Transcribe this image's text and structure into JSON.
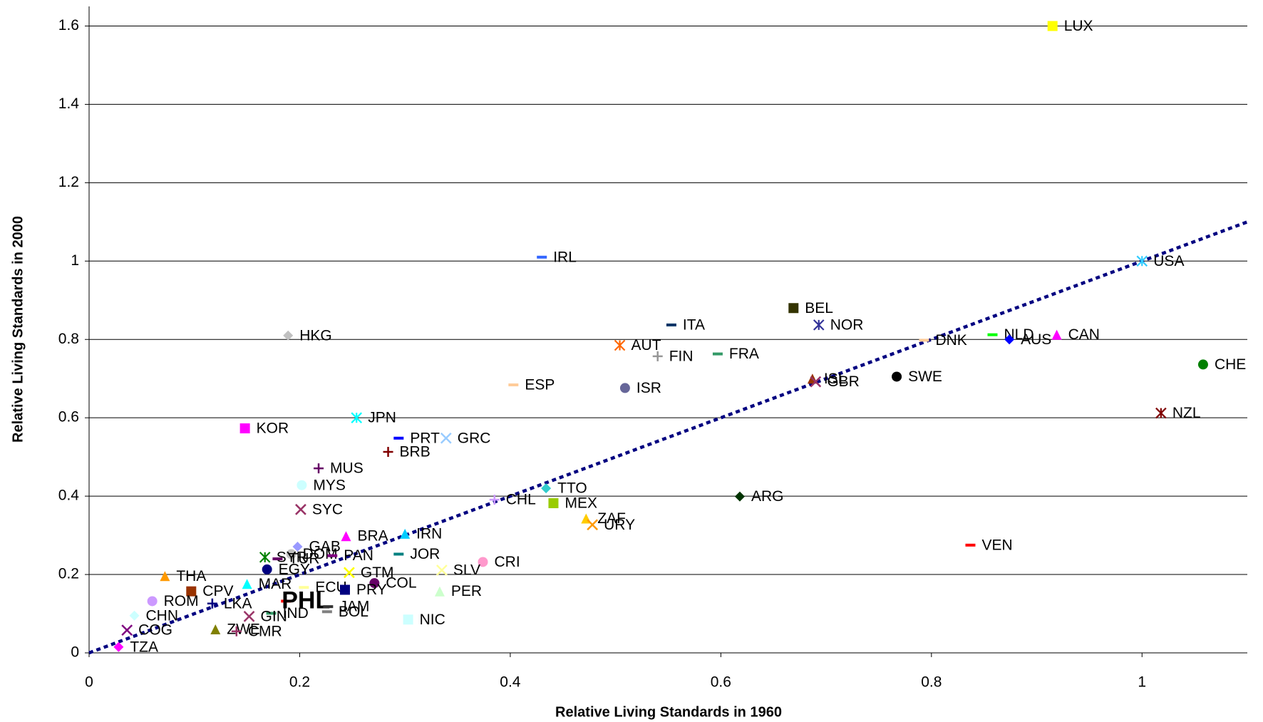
{
  "chart_data": {
    "type": "scatter",
    "x_label": "Relative Living Standards in 1960",
    "y_label": "Relative Living Standards in 2000",
    "xlim": [
      0,
      1.1
    ],
    "ylim": [
      0,
      1.65
    ],
    "xticks": [
      0,
      0.2,
      0.4,
      0.6,
      0.8,
      1
    ],
    "yticks": [
      0,
      0.2,
      0.4,
      0.6,
      0.8,
      1,
      1.2,
      1.4,
      1.6
    ],
    "grid": true,
    "trendline": {
      "x": [
        0,
        1.1
      ],
      "values": [
        0,
        1.1
      ],
      "color": "#000080"
    },
    "series": [
      {
        "name": "LUX",
        "color": "#ffff00",
        "marker": "square",
        "x": [
          0.915
        ],
        "values": [
          1.6
        ]
      },
      {
        "name": "USA",
        "color": "#33ccff",
        "marker": "star",
        "x": [
          1.0
        ],
        "values": [
          1.0
        ]
      },
      {
        "name": "IRL",
        "color": "#3366ff",
        "marker": "dash",
        "x": [
          0.43
        ],
        "values": [
          1.01
        ]
      },
      {
        "name": "BEL",
        "color": "#333300",
        "marker": "square",
        "x": [
          0.669
        ],
        "values": [
          0.88
        ]
      },
      {
        "name": "ITA",
        "color": "#003366",
        "marker": "dash",
        "x": [
          0.553
        ],
        "values": [
          0.837
        ]
      },
      {
        "name": "NOR",
        "color": "#333399",
        "marker": "star",
        "x": [
          0.693
        ],
        "values": [
          0.837
        ]
      },
      {
        "name": "HKG",
        "color": "#c0c0c0",
        "marker": "diamond",
        "x": [
          0.189
        ],
        "values": [
          0.81
        ]
      },
      {
        "name": "CAN",
        "color": "#ff00ff",
        "marker": "triangle",
        "x": [
          0.919
        ],
        "values": [
          0.812
        ]
      },
      {
        "name": "NLD",
        "color": "#00ff00",
        "marker": "dash",
        "x": [
          0.858
        ],
        "values": [
          0.812
        ]
      },
      {
        "name": "AUS",
        "color": "#0000ff",
        "marker": "diamond",
        "x": [
          0.874
        ],
        "values": [
          0.8
        ]
      },
      {
        "name": "DNK",
        "color": "#ffcc99",
        "marker": "dash",
        "x": [
          0.793
        ],
        "values": [
          0.798
        ]
      },
      {
        "name": "AUT",
        "color": "#ff6600",
        "marker": "star",
        "x": [
          0.504
        ],
        "values": [
          0.785
        ]
      },
      {
        "name": "FIN",
        "color": "#969696",
        "marker": "plus",
        "x": [
          0.54
        ],
        "values": [
          0.757
        ]
      },
      {
        "name": "FRA",
        "color": "#339966",
        "marker": "dash",
        "x": [
          0.597
        ],
        "values": [
          0.763
        ]
      },
      {
        "name": "CHE",
        "color": "#008000",
        "marker": "circle",
        "x": [
          1.058
        ],
        "values": [
          0.736
        ]
      },
      {
        "name": "ESP",
        "color": "#ffcc99",
        "marker": "dash",
        "x": [
          0.403
        ],
        "values": [
          0.684
        ]
      },
      {
        "name": "ISR",
        "color": "#666699",
        "marker": "circle",
        "x": [
          0.509
        ],
        "values": [
          0.676
        ]
      },
      {
        "name": "ISL",
        "color": "#993300",
        "marker": "triangle",
        "x": [
          0.687
        ],
        "values": [
          0.7
        ]
      },
      {
        "name": "GBR",
        "color": "#993366",
        "marker": "x",
        "x": [
          0.69
        ],
        "values": [
          0.692
        ]
      },
      {
        "name": "SWE",
        "color": "#000000",
        "marker": "circle",
        "x": [
          0.767
        ],
        "values": [
          0.705
        ]
      },
      {
        "name": "NZL",
        "color": "#800000",
        "marker": "star",
        "x": [
          1.018
        ],
        "values": [
          0.612
        ]
      },
      {
        "name": "JPN",
        "color": "#00ffff",
        "marker": "star",
        "x": [
          0.254
        ],
        "values": [
          0.6
        ]
      },
      {
        "name": "KOR",
        "color": "#ff00ff",
        "marker": "square",
        "x": [
          0.148
        ],
        "values": [
          0.573
        ]
      },
      {
        "name": "PRT",
        "color": "#0000ff",
        "marker": "dash",
        "x": [
          0.294
        ],
        "values": [
          0.548
        ]
      },
      {
        "name": "GRC",
        "color": "#99ccff",
        "marker": "x",
        "x": [
          0.339
        ],
        "values": [
          0.548
        ]
      },
      {
        "name": "BRB",
        "color": "#800000",
        "marker": "plus",
        "x": [
          0.284
        ],
        "values": [
          0.513
        ]
      },
      {
        "name": "MUS",
        "color": "#660066",
        "marker": "plus",
        "x": [
          0.218
        ],
        "values": [
          0.471
        ]
      },
      {
        "name": "MYS",
        "color": "#ccffff",
        "marker": "circle",
        "x": [
          0.202
        ],
        "values": [
          0.428
        ]
      },
      {
        "name": "ARG",
        "color": "#003300",
        "marker": "diamond",
        "x": [
          0.618
        ],
        "values": [
          0.399
        ]
      },
      {
        "name": "TTO",
        "color": "#33cccc",
        "marker": "diamond",
        "x": [
          0.434
        ],
        "values": [
          0.42
        ]
      },
      {
        "name": "CHL",
        "color": "#cc99ff",
        "marker": "plus",
        "x": [
          0.385
        ],
        "values": [
          0.391
        ]
      },
      {
        "name": "MEX",
        "color": "#99cc00",
        "marker": "square",
        "x": [
          0.441
        ],
        "values": [
          0.382
        ]
      },
      {
        "name": "SYC",
        "color": "#993366",
        "marker": "x",
        "x": [
          0.201
        ],
        "values": [
          0.366
        ]
      },
      {
        "name": "ZAF",
        "color": "#ffcc00",
        "marker": "triangle",
        "x": [
          0.472
        ],
        "values": [
          0.343
        ]
      },
      {
        "name": "URY",
        "color": "#ff9900",
        "marker": "x",
        "x": [
          0.478
        ],
        "values": [
          0.327
        ]
      },
      {
        "name": "IRN",
        "color": "#00ccff",
        "marker": "triangle",
        "x": [
          0.3
        ],
        "values": [
          0.304
        ]
      },
      {
        "name": "BRA",
        "color": "#ff00ff",
        "marker": "triangle",
        "x": [
          0.244
        ],
        "values": [
          0.298
        ]
      },
      {
        "name": "VEN",
        "color": "#ff0000",
        "marker": "dash",
        "x": [
          0.837
        ],
        "values": [
          0.275
        ]
      },
      {
        "name": "GAB",
        "color": "#9999ff",
        "marker": "diamond",
        "x": [
          0.198
        ],
        "values": [
          0.271
        ]
      },
      {
        "name": "JOR",
        "color": "#008080",
        "marker": "dash",
        "x": [
          0.294
        ],
        "values": [
          0.252
        ]
      },
      {
        "name": "DOM",
        "color": "#c0c0c0",
        "marker": "circle",
        "x": [
          0.192
        ],
        "values": [
          0.252
        ]
      },
      {
        "name": "PAN",
        "color": "#800080",
        "marker": "dash",
        "x": [
          0.231
        ],
        "values": [
          0.248
        ]
      },
      {
        "name": "SYR",
        "color": "#008000",
        "marker": "star",
        "x": [
          0.167
        ],
        "values": [
          0.244
        ]
      },
      {
        "name": "TUR",
        "color": "#660066",
        "marker": "dash",
        "x": [
          0.179
        ],
        "values": [
          0.24
        ]
      },
      {
        "name": "CRI",
        "color": "#ff99cc",
        "marker": "circle",
        "x": [
          0.374
        ],
        "values": [
          0.232
        ]
      },
      {
        "name": "THA",
        "color": "#ff9900",
        "marker": "triangle",
        "x": [
          0.072
        ],
        "values": [
          0.196
        ]
      },
      {
        "name": "EGY",
        "color": "#000080",
        "marker": "circle",
        "x": [
          0.169
        ],
        "values": [
          0.213
        ]
      },
      {
        "name": "SLV",
        "color": "#ffff99",
        "marker": "x",
        "x": [
          0.335
        ],
        "values": [
          0.211
        ]
      },
      {
        "name": "GTM",
        "color": "#ffff00",
        "marker": "x",
        "x": [
          0.247
        ],
        "values": [
          0.205
        ]
      },
      {
        "name": "COL",
        "color": "#660066",
        "marker": "circle",
        "x": [
          0.271
        ],
        "values": [
          0.178
        ]
      },
      {
        "name": "MAR",
        "color": "#00ffff",
        "marker": "triangle",
        "x": [
          0.15
        ],
        "values": [
          0.176
        ]
      },
      {
        "name": "ECU",
        "color": "#ffff99",
        "marker": "dash",
        "x": [
          0.204
        ],
        "values": [
          0.167
        ]
      },
      {
        "name": "PER",
        "color": "#ccffcc",
        "marker": "triangle",
        "x": [
          0.333
        ],
        "values": [
          0.157
        ]
      },
      {
        "name": "CPV",
        "color": "#993300",
        "marker": "square",
        "x": [
          0.097
        ],
        "values": [
          0.157
        ]
      },
      {
        "name": "PRY",
        "color": "#000080",
        "marker": "square",
        "x": [
          0.243
        ],
        "values": [
          0.161
        ]
      },
      {
        "name": "PHL",
        "color": "#ff0000",
        "marker": "dash",
        "highlight": true,
        "x": [
          0.187
        ],
        "values": [
          0.132
        ]
      },
      {
        "name": "JAM",
        "color": "#333333",
        "marker": "dash",
        "x": [
          0.227
        ],
        "values": [
          0.118
        ]
      },
      {
        "name": "BOL",
        "color": "#808080",
        "marker": "dash",
        "x": [
          0.226
        ],
        "values": [
          0.105
        ]
      },
      {
        "name": "IND",
        "color": "#339966",
        "marker": "dash",
        "x": [
          0.173
        ],
        "values": [
          0.101
        ]
      },
      {
        "name": "ROM",
        "color": "#cc99ff",
        "marker": "circle",
        "x": [
          0.06
        ],
        "values": [
          0.132
        ]
      },
      {
        "name": "CHN",
        "color": "#ccffff",
        "marker": "diamond",
        "x": [
          0.043
        ],
        "values": [
          0.095
        ]
      },
      {
        "name": "NIC",
        "color": "#ccffff",
        "marker": "square",
        "x": [
          0.303
        ],
        "values": [
          0.085
        ]
      },
      {
        "name": "GIN",
        "color": "#993366",
        "marker": "x",
        "x": [
          0.152
        ],
        "values": [
          0.093
        ]
      },
      {
        "name": "LKA",
        "color": "#000080",
        "marker": "plus",
        "x": [
          0.117
        ],
        "values": [
          0.126
        ]
      },
      {
        "name": "COG",
        "color": "#800080",
        "marker": "x",
        "x": [
          0.036
        ],
        "values": [
          0.058
        ]
      },
      {
        "name": "TZA",
        "color": "#ff00ff",
        "marker": "diamond",
        "x": [
          0.028
        ],
        "values": [
          0.015
        ]
      },
      {
        "name": "ZWE",
        "color": "#808000",
        "marker": "triangle",
        "x": [
          0.12
        ],
        "values": [
          0.06
        ]
      },
      {
        "name": "CMR",
        "color": "#993366",
        "marker": "plus",
        "x": [
          0.14
        ],
        "values": [
          0.055
        ]
      }
    ]
  }
}
